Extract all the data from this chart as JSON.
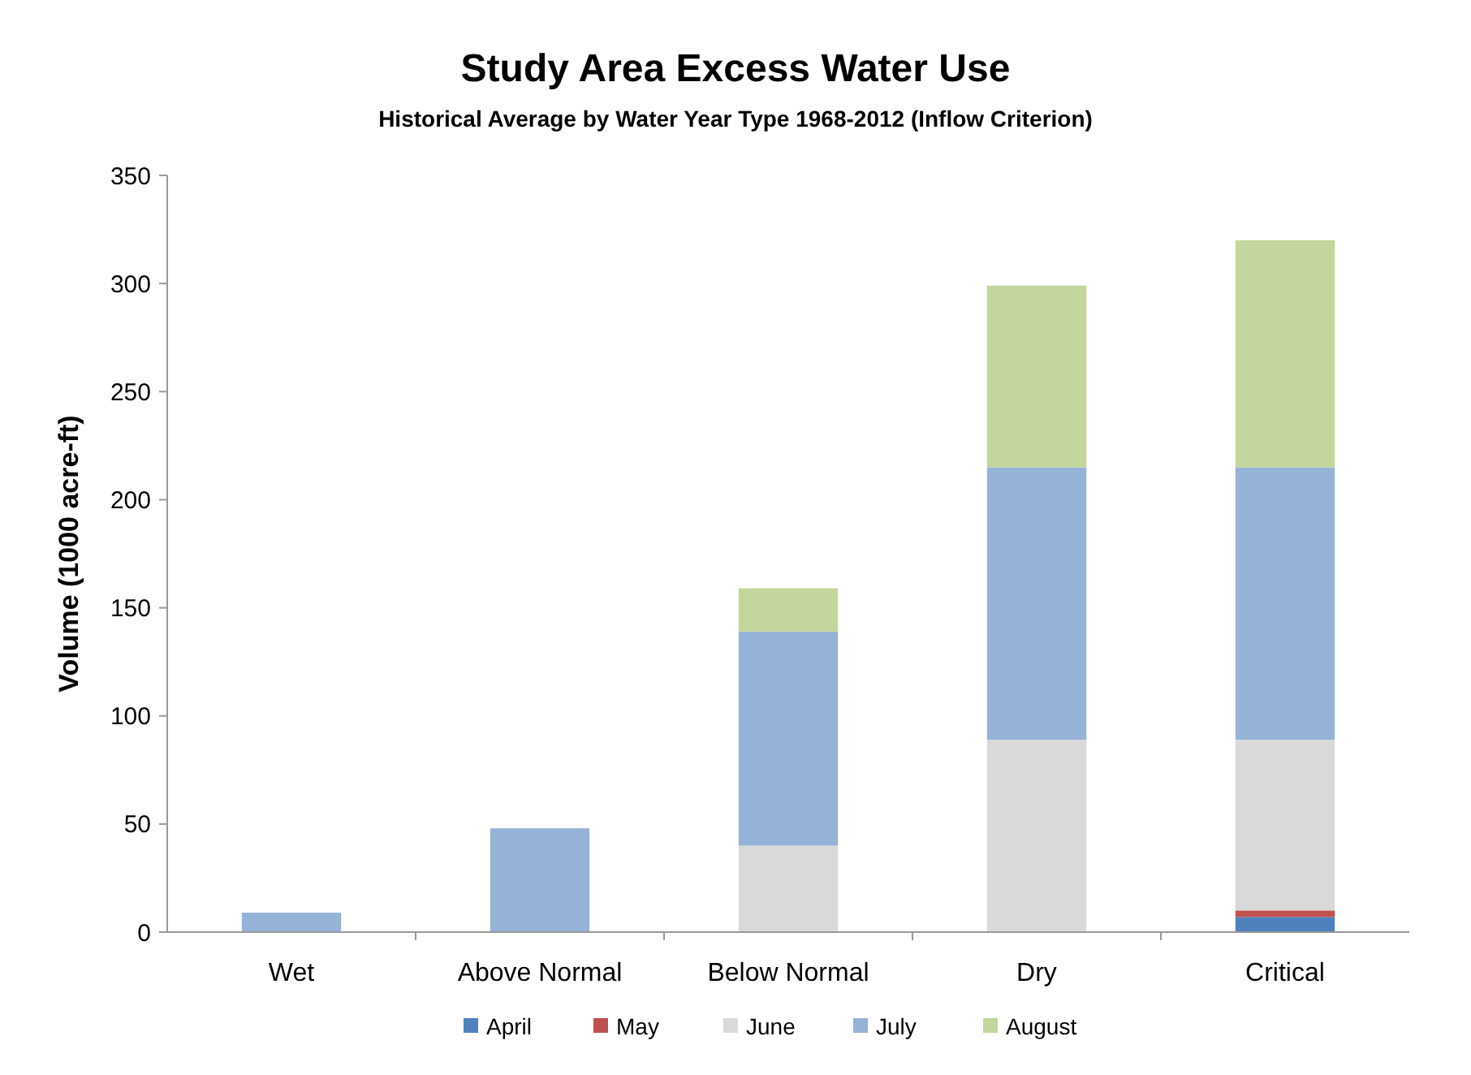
{
  "chart_data": {
    "type": "bar",
    "title": "Study Area Excess Water Use",
    "subtitle": "Historical Average by Water Year Type 1968-2012 (Inflow Criterion)",
    "ylabel": "Volume (1000 acre-ft)",
    "categories": [
      "Wet",
      "Above Normal",
      "Below Normal",
      "Dry",
      "Critical"
    ],
    "stacked": true,
    "legend": "bottom",
    "ylim": [
      0,
      350
    ],
    "yticks": [
      0,
      50,
      100,
      150,
      200,
      250,
      300,
      350
    ],
    "series": [
      {
        "name": "April",
        "color": "#4f81bd",
        "values": [
          0,
          0,
          0,
          0,
          7
        ]
      },
      {
        "name": "May",
        "color": "#c0504d",
        "values": [
          0,
          0,
          0,
          0,
          3
        ]
      },
      {
        "name": "June",
        "color": "#d9d9d9",
        "values": [
          0,
          0,
          40,
          89,
          79
        ]
      },
      {
        "name": "July",
        "color": "#95b3d7",
        "values": [
          9,
          48,
          99,
          126,
          126
        ]
      },
      {
        "name": "August",
        "color": "#c3d69b",
        "values": [
          0,
          0,
          20,
          84,
          105
        ]
      }
    ]
  }
}
